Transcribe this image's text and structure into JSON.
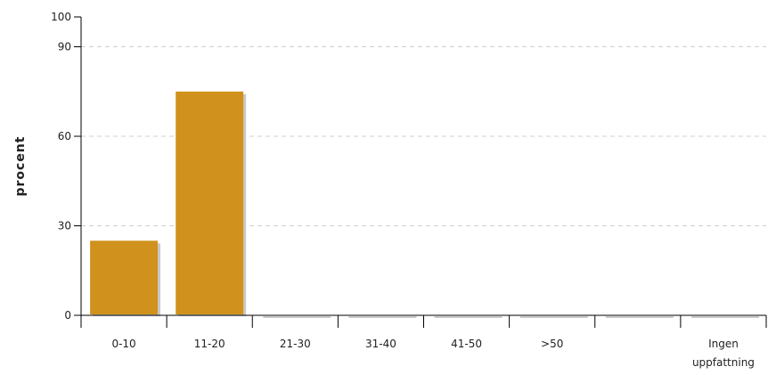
{
  "chart_data": {
    "type": "bar",
    "title": "",
    "xlabel": "",
    "ylabel": "procent",
    "ylim": [
      0,
      100
    ],
    "yticks": [
      0,
      30,
      60,
      90,
      100
    ],
    "grid": true,
    "bar_color": "#D0921C",
    "shadow_color": "#C9C9C9",
    "categories": [
      "0-10",
      "11-20",
      "21-30",
      "31-40",
      "41-50",
      ">50",
      "",
      "Ingen uppfattning"
    ],
    "category_label_lines": [
      [
        "0-10"
      ],
      [
        "11-20"
      ],
      [
        "21-30"
      ],
      [
        "31-40"
      ],
      [
        "41-50"
      ],
      [
        ">50"
      ],
      [
        ""
      ],
      [
        "Ingen",
        "uppfattning"
      ]
    ],
    "values": [
      25,
      75,
      0,
      0,
      0,
      0,
      0,
      0
    ]
  }
}
